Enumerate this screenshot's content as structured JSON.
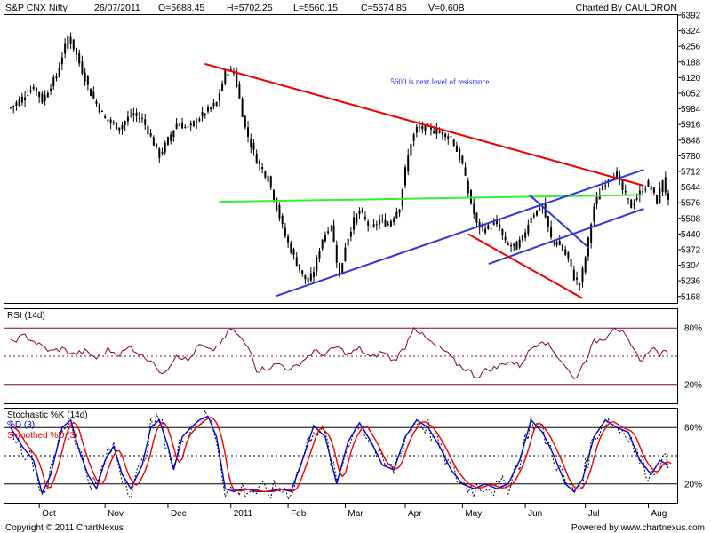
{
  "header": {
    "symbol": "S&P CNX Nifty",
    "date": "26/07/2011",
    "open": "O=5688.45",
    "high": "H=5702.25",
    "low": "L=5560.15",
    "close": "C=5574.85",
    "volume": "V=0.60B",
    "credit": "Charted By CAULDRON"
  },
  "footer": {
    "copyright": "Copyright © 2011 ChartNexus",
    "powered": "Powered by www.chartnexus.com"
  },
  "colors": {
    "price_bar": "#000000",
    "resistance_line": "#ee0000",
    "support_line": "#3333dd",
    "neckline": "#33ee33",
    "rsi_line": "#800040",
    "k_line": "#0000cc",
    "d_line": "#ee0000"
  },
  "chart_data": [
    {
      "type": "bar",
      "name": "S&P CNX Nifty daily OHLC",
      "ylim": [
        5140,
        6392
      ],
      "y_ticks": [
        6392,
        6324,
        6256,
        6188,
        6120,
        6052,
        5984,
        5916,
        5848,
        5780,
        5712,
        5644,
        5576,
        5508,
        5440,
        5372,
        5304,
        5236,
        5168
      ],
      "x_labels": [
        "Oct",
        "Nov",
        "Dec",
        "2011",
        "Feb",
        "Mar",
        "Apr",
        "May",
        "Jun",
        "Jul",
        "Aug"
      ],
      "x_label_day_index": [
        10,
        33,
        55,
        77,
        97,
        117,
        138,
        158,
        180,
        201,
        223
      ],
      "close_keypoints": [
        [
          0,
          5990
        ],
        [
          3,
          6020
        ],
        [
          8,
          6080
        ],
        [
          11,
          6020
        ],
        [
          16,
          6130
        ],
        [
          20,
          6300
        ],
        [
          22,
          6250
        ],
        [
          28,
          6050
        ],
        [
          33,
          5940
        ],
        [
          38,
          5900
        ],
        [
          42,
          5960
        ],
        [
          46,
          5940
        ],
        [
          52,
          5780
        ],
        [
          58,
          5920
        ],
        [
          62,
          5900
        ],
        [
          68,
          5970
        ],
        [
          72,
          6010
        ],
        [
          75,
          6140
        ],
        [
          78,
          6150
        ],
        [
          82,
          5900
        ],
        [
          86,
          5760
        ],
        [
          90,
          5680
        ],
        [
          92,
          5600
        ],
        [
          96,
          5430
        ],
        [
          99,
          5340
        ],
        [
          102,
          5260
        ],
        [
          104,
          5230
        ],
        [
          106,
          5280
        ],
        [
          109,
          5420
        ],
        [
          112,
          5480
        ],
        [
          115,
          5250
        ],
        [
          117,
          5390
        ],
        [
          120,
          5500
        ],
        [
          122,
          5540
        ],
        [
          126,
          5460
        ],
        [
          129,
          5500
        ],
        [
          132,
          5480
        ],
        [
          136,
          5560
        ],
        [
          138,
          5720
        ],
        [
          140,
          5840
        ],
        [
          142,
          5900
        ],
        [
          146,
          5900
        ],
        [
          150,
          5880
        ],
        [
          154,
          5860
        ],
        [
          158,
          5740
        ],
        [
          160,
          5620
        ],
        [
          163,
          5480
        ],
        [
          166,
          5460
        ],
        [
          170,
          5490
        ],
        [
          173,
          5400
        ],
        [
          176,
          5380
        ],
        [
          179,
          5420
        ],
        [
          182,
          5520
        ],
        [
          186,
          5560
        ],
        [
          189,
          5420
        ],
        [
          192,
          5390
        ],
        [
          195,
          5330
        ],
        [
          197,
          5250
        ],
        [
          199,
          5220
        ],
        [
          201,
          5340
        ],
        [
          204,
          5560
        ],
        [
          207,
          5650
        ],
        [
          210,
          5690
        ],
        [
          212,
          5700
        ],
        [
          214,
          5630
        ],
        [
          217,
          5560
        ],
        [
          220,
          5620
        ],
        [
          223,
          5660
        ],
        [
          226,
          5580
        ],
        [
          228,
          5680
        ],
        [
          230,
          5575
        ]
      ],
      "trendlines": [
        {
          "color": "red",
          "points": [
            [
              "2010-12-24",
              6180
            ],
            [
              "2011-07-27",
              5650
            ]
          ]
        },
        {
          "color": "green",
          "points": [
            [
              "2010-12-31",
              5580
            ],
            [
              "2011-07-27",
              5610
            ]
          ]
        },
        {
          "color": "blue",
          "points": [
            [
              "2011-01-28",
              5170
            ],
            [
              "2011-07-27",
              5720
            ]
          ]
        },
        {
          "color": "blue",
          "points": [
            [
              "2011-05-12",
              5310
            ],
            [
              "2011-07-27",
              5550
            ]
          ]
        },
        {
          "color": "red",
          "points": [
            [
              "2011-05-02",
              5440
            ],
            [
              "2011-06-27",
              5160
            ]
          ]
        },
        {
          "color": "blue",
          "points": [
            [
              "2011-06-01",
              5610
            ],
            [
              "2011-06-30",
              5380
            ]
          ]
        }
      ],
      "annotations": [
        {
          "text": "5600 is next level of resistance",
          "at": [
            "2011-04-07",
            6090
          ]
        }
      ]
    },
    {
      "type": "line",
      "title": "RSI (14d)",
      "ylim": [
        0,
        100
      ],
      "y_ticks": [
        "80%",
        "20%"
      ],
      "levels": [
        80,
        50,
        20
      ],
      "series": [
        {
          "values_keypoints": [
            [
              0,
              65
            ],
            [
              5,
              72
            ],
            [
              10,
              62
            ],
            [
              14,
              55
            ],
            [
              18,
              58
            ],
            [
              22,
              52
            ],
            [
              26,
              55
            ],
            [
              30,
              48
            ],
            [
              34,
              57
            ],
            [
              38,
              52
            ],
            [
              42,
              60
            ],
            [
              46,
              50
            ],
            [
              50,
              45
            ],
            [
              52,
              30
            ],
            [
              55,
              38
            ],
            [
              58,
              52
            ],
            [
              62,
              45
            ],
            [
              66,
              62
            ],
            [
              70,
              55
            ],
            [
              74,
              65
            ],
            [
              77,
              80
            ],
            [
              80,
              70
            ],
            [
              84,
              56
            ],
            [
              86,
              35
            ],
            [
              90,
              38
            ],
            [
              94,
              42
            ],
            [
              98,
              35
            ],
            [
              102,
              45
            ],
            [
              106,
              55
            ],
            [
              110,
              52
            ],
            [
              114,
              60
            ],
            [
              118,
              52
            ],
            [
              122,
              58
            ],
            [
              126,
              48
            ],
            [
              130,
              55
            ],
            [
              134,
              45
            ],
            [
              138,
              60
            ],
            [
              141,
              82
            ],
            [
              144,
              72
            ],
            [
              148,
              62
            ],
            [
              152,
              55
            ],
            [
              156,
              42
            ],
            [
              160,
              35
            ],
            [
              163,
              28
            ],
            [
              166,
              35
            ],
            [
              170,
              38
            ],
            [
              174,
              45
            ],
            [
              178,
              40
            ],
            [
              182,
              58
            ],
            [
              186,
              68
            ],
            [
              190,
              55
            ],
            [
              194,
              40
            ],
            [
              197,
              25
            ],
            [
              200,
              40
            ],
            [
              204,
              65
            ],
            [
              208,
              70
            ],
            [
              211,
              82
            ],
            [
              214,
              75
            ],
            [
              218,
              55
            ],
            [
              221,
              45
            ],
            [
              224,
              60
            ],
            [
              227,
              52
            ],
            [
              230,
              55
            ]
          ]
        }
      ]
    },
    {
      "type": "line",
      "title": "Stochastic %K (14d)",
      "ylim": [
        0,
        100
      ],
      "y_ticks": [
        "80%",
        "20%"
      ],
      "levels": [
        80,
        50,
        20
      ],
      "series": [
        {
          "name": "%D (3)",
          "values_keypoints": [
            [
              0,
              80
            ],
            [
              4,
              60
            ],
            [
              8,
              45
            ],
            [
              11,
              10
            ],
            [
              14,
              30
            ],
            [
              18,
              80
            ],
            [
              21,
              88
            ],
            [
              24,
              55
            ],
            [
              27,
              30
            ],
            [
              30,
              15
            ],
            [
              33,
              45
            ],
            [
              36,
              60
            ],
            [
              39,
              30
            ],
            [
              42,
              15
            ],
            [
              46,
              40
            ],
            [
              49,
              80
            ],
            [
              52,
              88
            ],
            [
              55,
              60
            ],
            [
              57,
              35
            ],
            [
              60,
              70
            ],
            [
              63,
              80
            ],
            [
              66,
              88
            ],
            [
              69,
              92
            ],
            [
              72,
              70
            ],
            [
              75,
              15
            ],
            [
              78,
              12
            ],
            [
              82,
              15
            ],
            [
              86,
              12
            ],
            [
              90,
              12
            ],
            [
              94,
              15
            ],
            [
              98,
              12
            ],
            [
              102,
              45
            ],
            [
              106,
              82
            ],
            [
              110,
              70
            ],
            [
              114,
              20
            ],
            [
              118,
              65
            ],
            [
              122,
              85
            ],
            [
              126,
              65
            ],
            [
              130,
              40
            ],
            [
              134,
              35
            ],
            [
              138,
              70
            ],
            [
              142,
              88
            ],
            [
              146,
              80
            ],
            [
              150,
              60
            ],
            [
              154,
              35
            ],
            [
              158,
              20
            ],
            [
              162,
              15
            ],
            [
              166,
              20
            ],
            [
              170,
              15
            ],
            [
              174,
              20
            ],
            [
              178,
              45
            ],
            [
              182,
              88
            ],
            [
              186,
              75
            ],
            [
              190,
              50
            ],
            [
              194,
              20
            ],
            [
              197,
              12
            ],
            [
              200,
              25
            ],
            [
              204,
              70
            ],
            [
              208,
              88
            ],
            [
              212,
              80
            ],
            [
              216,
              75
            ],
            [
              220,
              45
            ],
            [
              224,
              30
            ],
            [
              227,
              45
            ],
            [
              230,
              40
            ]
          ]
        },
        {
          "name": "Smoothed %D (3)"
        }
      ]
    }
  ]
}
